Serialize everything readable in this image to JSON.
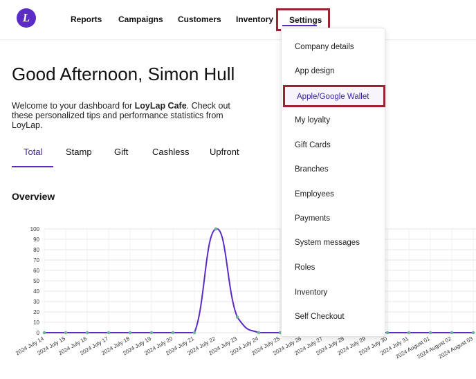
{
  "brand": {
    "logo_letter": "L",
    "accent": "#5b2bc6",
    "highlight": "#9b2432"
  },
  "nav": {
    "items": [
      "Reports",
      "Campaigns",
      "Customers",
      "Inventory"
    ],
    "settings_label": "Settings"
  },
  "greeting": "Good Afternoon, Simon Hull",
  "welcome": {
    "prefix": "Welcome to your dashboard for ",
    "business": "LoyLap Cafe",
    "suffix": ". Check out these personalized tips and performance statistics from LoyLap."
  },
  "tabs": [
    "Total",
    "Stamp",
    "Gift",
    "Cashless",
    "Upfront"
  ],
  "active_tab": "Total",
  "overview_title": "Overview",
  "settings_menu": {
    "items": [
      "Company details",
      "App design",
      "Apple/Google Wallet",
      "My loyalty",
      "Gift Cards",
      "Branches",
      "Employees",
      "Payments",
      "System messages",
      "Roles",
      "Inventory",
      "Self Checkout"
    ],
    "highlighted": "Apple/Google Wallet"
  },
  "chart_data": {
    "type": "line",
    "x": [
      "2024 July 14",
      "2024 July 15",
      "2024 July 16",
      "2024 July 17",
      "2024 July 18",
      "2024 July 19",
      "2024 July 20",
      "2024 July 21",
      "2024 July 22",
      "2024 July 23",
      "2024 July 24",
      "2024 July 25",
      "2024 July 26",
      "2024 July 27",
      "2024 July 28",
      "2024 July 29",
      "2024 July 30",
      "2024 July 31",
      "2024 August 01",
      "2024 August 02",
      "2024 August 03"
    ],
    "series": [
      {
        "values": [
          0,
          0,
          0,
          0,
          0,
          0,
          0,
          0,
          100,
          15,
          0,
          0,
          0,
          0,
          0,
          0,
          0,
          0,
          0,
          0,
          0
        ],
        "color": "#5b2bc6"
      }
    ],
    "ylim": [
      0,
      100
    ],
    "yticks": [
      0,
      10,
      20,
      30,
      40,
      50,
      60,
      70,
      80,
      90,
      100
    ],
    "grid": true
  }
}
